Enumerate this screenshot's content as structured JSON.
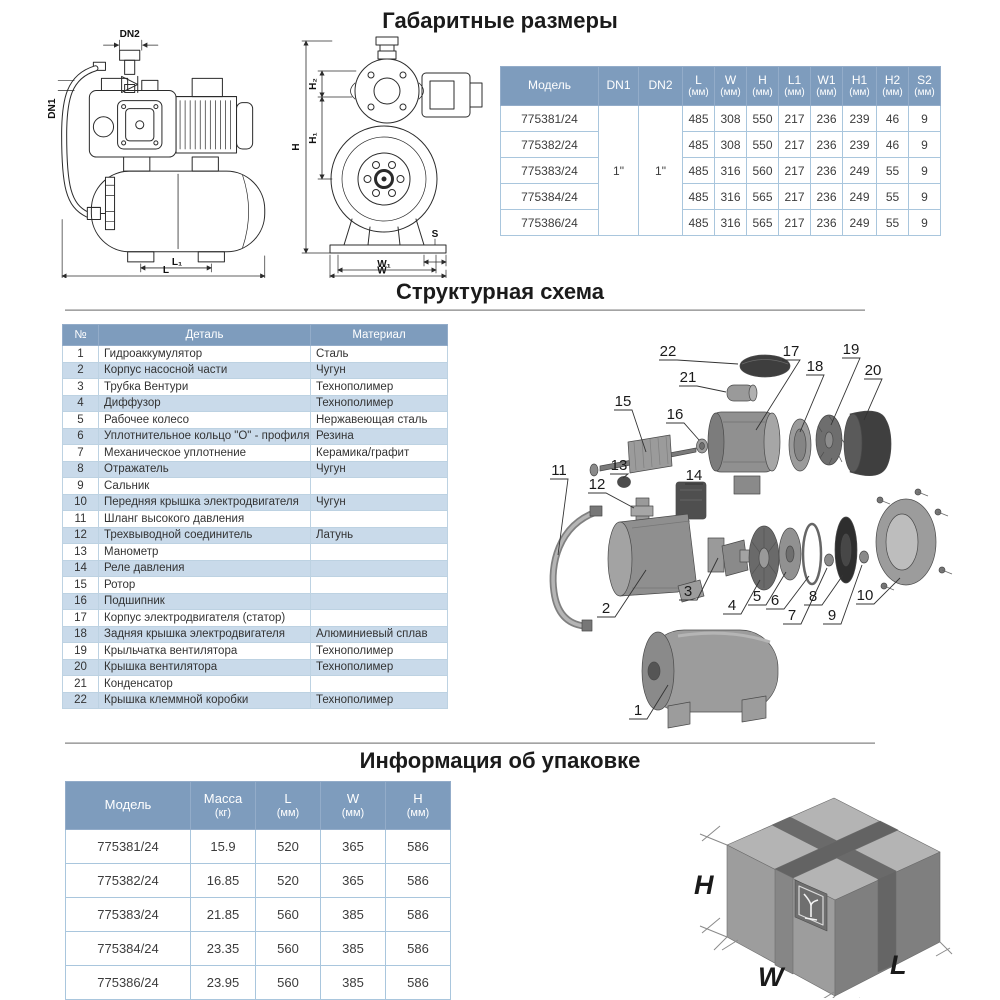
{
  "titles": {
    "dimensions": "Габаритные размеры",
    "structure": "Структурная схема",
    "packaging": "Информация об упаковке"
  },
  "colors": {
    "header_bg": "#7E9CBD",
    "row_alt": "#C9DAEA",
    "border": "#A9C6DD",
    "cell_text": "#3c3c3c"
  },
  "dim_drawing": {
    "side_labels": {
      "dn2": "DN2",
      "dn1": "DN1",
      "l1": "L₁",
      "l": "L"
    },
    "front_labels": {
      "h": "H",
      "h2": "H₂",
      "h1": "H₁",
      "s": "S",
      "w1": "W₁",
      "w": "W"
    }
  },
  "dim_table": {
    "headers": [
      {
        "main": "Модель",
        "sub": ""
      },
      {
        "main": "DN1",
        "sub": ""
      },
      {
        "main": "DN2",
        "sub": ""
      },
      {
        "main": "L",
        "sub": "(мм)"
      },
      {
        "main": "W",
        "sub": "(мм)"
      },
      {
        "main": "H",
        "sub": "(мм)"
      },
      {
        "main": "L1",
        "sub": "(мм)"
      },
      {
        "main": "W1",
        "sub": "(мм)"
      },
      {
        "main": "H1",
        "sub": "(мм)"
      },
      {
        "main": "H2",
        "sub": "(мм)"
      },
      {
        "main": "S2",
        "sub": "(мм)"
      }
    ],
    "dn1": "1\"",
    "dn2": "1\"",
    "rows": [
      [
        "775381/24",
        "485",
        "308",
        "550",
        "217",
        "236",
        "239",
        "46",
        "9"
      ],
      [
        "775382/24",
        "485",
        "308",
        "550",
        "217",
        "236",
        "239",
        "46",
        "9"
      ],
      [
        "775383/24",
        "485",
        "316",
        "560",
        "217",
        "236",
        "249",
        "55",
        "9"
      ],
      [
        "775384/24",
        "485",
        "316",
        "565",
        "217",
        "236",
        "249",
        "55",
        "9"
      ],
      [
        "775386/24",
        "485",
        "316",
        "565",
        "217",
        "236",
        "249",
        "55",
        "9"
      ]
    ]
  },
  "parts_table": {
    "headers": [
      "№",
      "Деталь",
      "Материал"
    ],
    "rows": [
      [
        "1",
        "Гидроаккумулятор",
        "Сталь"
      ],
      [
        "2",
        "Корпус насосной части",
        "Чугун"
      ],
      [
        "3",
        "Трубка Вентури",
        "Технополимер"
      ],
      [
        "4",
        "Диффузор",
        "Технополимер"
      ],
      [
        "5",
        "Рабочее колесо",
        "Нержавеющая сталь"
      ],
      [
        "6",
        "Уплотнительное кольцо \"О\" - профиля",
        "Резина"
      ],
      [
        "7",
        "Механическое уплотнение",
        "Керамика/графит"
      ],
      [
        "8",
        "Отражатель",
        "Чугун"
      ],
      [
        "9",
        "Сальник",
        ""
      ],
      [
        "10",
        "Передняя крышка электродвигателя",
        "Чугун"
      ],
      [
        "11",
        "Шланг высокого давления",
        ""
      ],
      [
        "12",
        "Трехвыводной соединитель",
        "Латунь"
      ],
      [
        "13",
        "Манометр",
        ""
      ],
      [
        "14",
        "Реле давления",
        ""
      ],
      [
        "15",
        "Ротор",
        ""
      ],
      [
        "16",
        "Подшипник",
        ""
      ],
      [
        "17",
        "Корпус электродвигателя (статор)",
        ""
      ],
      [
        "18",
        "Задняя крышка электродвигателя",
        "Алюминиевый сплав"
      ],
      [
        "19",
        "Крыльчатка вентилятора",
        "Технополимер"
      ],
      [
        "20",
        "Крышка вентилятора",
        "Технополимер"
      ],
      [
        "21",
        "Конденсатор",
        ""
      ],
      [
        "22",
        "Крышка клеммной коробки",
        "Технополимер"
      ]
    ]
  },
  "exploded": {
    "callouts": [
      "1",
      "2",
      "3",
      "4",
      "5",
      "6",
      "7",
      "8",
      "9",
      "10",
      "11",
      "12",
      "13",
      "14",
      "15",
      "16",
      "17",
      "18",
      "19",
      "20",
      "21",
      "22"
    ]
  },
  "pack_table": {
    "headers": [
      {
        "main": "Модель",
        "sub": ""
      },
      {
        "main": "Масса",
        "sub": "(кг)"
      },
      {
        "main": "L",
        "sub": "(мм)"
      },
      {
        "main": "W",
        "sub": "(мм)"
      },
      {
        "main": "H",
        "sub": "(мм)"
      }
    ],
    "rows": [
      [
        "775381/24",
        "15.9",
        "520",
        "365",
        "586"
      ],
      [
        "775382/24",
        "16.85",
        "520",
        "365",
        "586"
      ],
      [
        "775383/24",
        "21.85",
        "560",
        "385",
        "586"
      ],
      [
        "775384/24",
        "23.35",
        "560",
        "385",
        "586"
      ],
      [
        "775386/24",
        "23.95",
        "560",
        "385",
        "586"
      ]
    ]
  },
  "box_labels": {
    "h": "H",
    "w": "W",
    "l": "L"
  }
}
